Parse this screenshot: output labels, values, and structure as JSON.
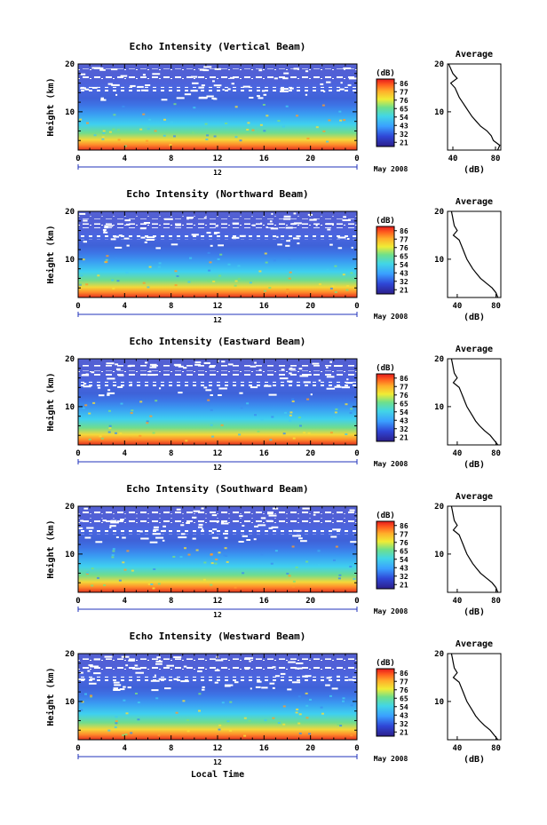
{
  "figure": {
    "date_label": "May 2008",
    "x_axis_title": "Local Time",
    "y_axis_title": "Height (km)",
    "colorbar_unit": "(dB)",
    "colorbar_ticks": [
      "86",
      "77",
      "76",
      "65",
      "54",
      "43",
      "32",
      "21"
    ],
    "profile_title": "Average",
    "profile_xlabel": "(dB)",
    "day_label": "12"
  },
  "chart_data": [
    {
      "type": "heatmap",
      "title": "Echo Intensity (Vertical Beam)",
      "xlabel": "",
      "ylabel": "Height (km)",
      "xlim": [
        0,
        24
      ],
      "ylim": [
        2,
        20
      ],
      "xticks": [
        "0",
        "4",
        "8",
        "12",
        "16",
        "20",
        "0"
      ],
      "yticks": [
        "10",
        "20"
      ],
      "colorbar": {
        "label": "(dB)",
        "range": [
          21,
          86
        ],
        "ticks": [
          "86",
          "77",
          "76",
          "65",
          "54",
          "43",
          "32",
          "21"
        ]
      },
      "profile": {
        "title": "Average",
        "xlabel": "(dB)",
        "xlim": [
          35,
          85
        ],
        "xticks": [
          "40",
          "80"
        ],
        "heights": [
          2,
          3,
          4,
          5,
          6,
          7,
          8,
          9,
          10,
          11,
          12,
          13,
          14,
          15,
          16,
          17,
          18,
          19,
          20
        ],
        "values": [
          82,
          84,
          78,
          76,
          72,
          66,
          62,
          58,
          55,
          52,
          49,
          46,
          44,
          42,
          38,
          44,
          40,
          38,
          36
        ]
      }
    },
    {
      "type": "heatmap",
      "title": "Echo Intensity (Northward Beam)",
      "xlabel": "",
      "ylabel": "Height (km)",
      "xlim": [
        0,
        24
      ],
      "ylim": [
        2,
        20
      ],
      "xticks": [
        "0",
        "4",
        "8",
        "12",
        "16",
        "20",
        "0"
      ],
      "yticks": [
        "10",
        "20"
      ],
      "colorbar": {
        "label": "(dB)",
        "range": [
          21,
          86
        ],
        "ticks": [
          "86",
          "77",
          "76",
          "65",
          "54",
          "43",
          "32",
          "21"
        ]
      },
      "profile": {
        "title": "Average",
        "xlabel": "(dB)",
        "xlim": [
          30,
          85
        ],
        "xticks": [
          "40",
          "80"
        ],
        "heights": [
          2,
          3,
          4,
          5,
          6,
          7,
          8,
          9,
          10,
          11,
          12,
          13,
          14,
          15,
          16,
          17,
          18,
          19,
          20
        ],
        "values": [
          82,
          80,
          76,
          70,
          64,
          60,
          56,
          53,
          50,
          48,
          46,
          44,
          42,
          36,
          40,
          37,
          36,
          35,
          34
        ]
      }
    },
    {
      "type": "heatmap",
      "title": "Echo Intensity (Eastward Beam)",
      "xlabel": "",
      "ylabel": "Height (km)",
      "xlim": [
        0,
        24
      ],
      "ylim": [
        2,
        20
      ],
      "xticks": [
        "0",
        "4",
        "8",
        "12",
        "16",
        "20",
        "0"
      ],
      "yticks": [
        "10",
        "20"
      ],
      "colorbar": {
        "label": "(dB)",
        "range": [
          21,
          86
        ],
        "ticks": [
          "86",
          "77",
          "76",
          "65",
          "54",
          "43",
          "32",
          "21"
        ]
      },
      "profile": {
        "title": "Average",
        "xlabel": "(dB)",
        "xlim": [
          30,
          85
        ],
        "xticks": [
          "40",
          "80"
        ],
        "heights": [
          2,
          3,
          4,
          5,
          6,
          7,
          8,
          9,
          10,
          11,
          12,
          13,
          14,
          15,
          16,
          17,
          18,
          19,
          20
        ],
        "values": [
          82,
          78,
          74,
          68,
          63,
          59,
          56,
          53,
          50,
          48,
          46,
          44,
          42,
          36,
          40,
          37,
          36,
          35,
          34
        ]
      }
    },
    {
      "type": "heatmap",
      "title": "Echo Intensity (Southward Beam)",
      "xlabel": "",
      "ylabel": "Height (km)",
      "xlim": [
        0,
        24
      ],
      "ylim": [
        2,
        20
      ],
      "xticks": [
        "0",
        "4",
        "8",
        "12",
        "16",
        "20",
        "0"
      ],
      "yticks": [
        "10",
        "20"
      ],
      "colorbar": {
        "label": "(dB)",
        "range": [
          21,
          86
        ],
        "ticks": [
          "86",
          "77",
          "76",
          "65",
          "54",
          "43",
          "32",
          "21"
        ]
      },
      "profile": {
        "title": "Average",
        "xlabel": "(dB)",
        "xlim": [
          30,
          85
        ],
        "xticks": [
          "40",
          "80"
        ],
        "heights": [
          2,
          3,
          4,
          5,
          6,
          7,
          8,
          9,
          10,
          11,
          12,
          13,
          14,
          15,
          16,
          17,
          18,
          19,
          20
        ],
        "values": [
          82,
          80,
          76,
          70,
          64,
          60,
          56,
          53,
          50,
          48,
          46,
          44,
          42,
          36,
          40,
          37,
          36,
          35,
          34
        ]
      }
    },
    {
      "type": "heatmap",
      "title": "Echo Intensity (Westward Beam)",
      "xlabel": "Local Time",
      "ylabel": "Height (km)",
      "xlim": [
        0,
        24
      ],
      "ylim": [
        2,
        20
      ],
      "xticks": [
        "0",
        "4",
        "8",
        "12",
        "16",
        "20",
        "0"
      ],
      "yticks": [
        "10",
        "20"
      ],
      "colorbar": {
        "label": "(dB)",
        "range": [
          21,
          86
        ],
        "ticks": [
          "86",
          "77",
          "76",
          "65",
          "54",
          "43",
          "32",
          "21"
        ]
      },
      "profile": {
        "title": "Average",
        "xlabel": "(dB)",
        "xlim": [
          30,
          85
        ],
        "xticks": [
          "40",
          "80"
        ],
        "heights": [
          2,
          3,
          4,
          5,
          6,
          7,
          8,
          9,
          10,
          11,
          12,
          13,
          14,
          15,
          16,
          17,
          18,
          19,
          20
        ],
        "values": [
          82,
          78,
          74,
          68,
          63,
          59,
          56,
          53,
          50,
          48,
          46,
          44,
          42,
          36,
          40,
          37,
          36,
          35,
          34
        ]
      }
    }
  ]
}
